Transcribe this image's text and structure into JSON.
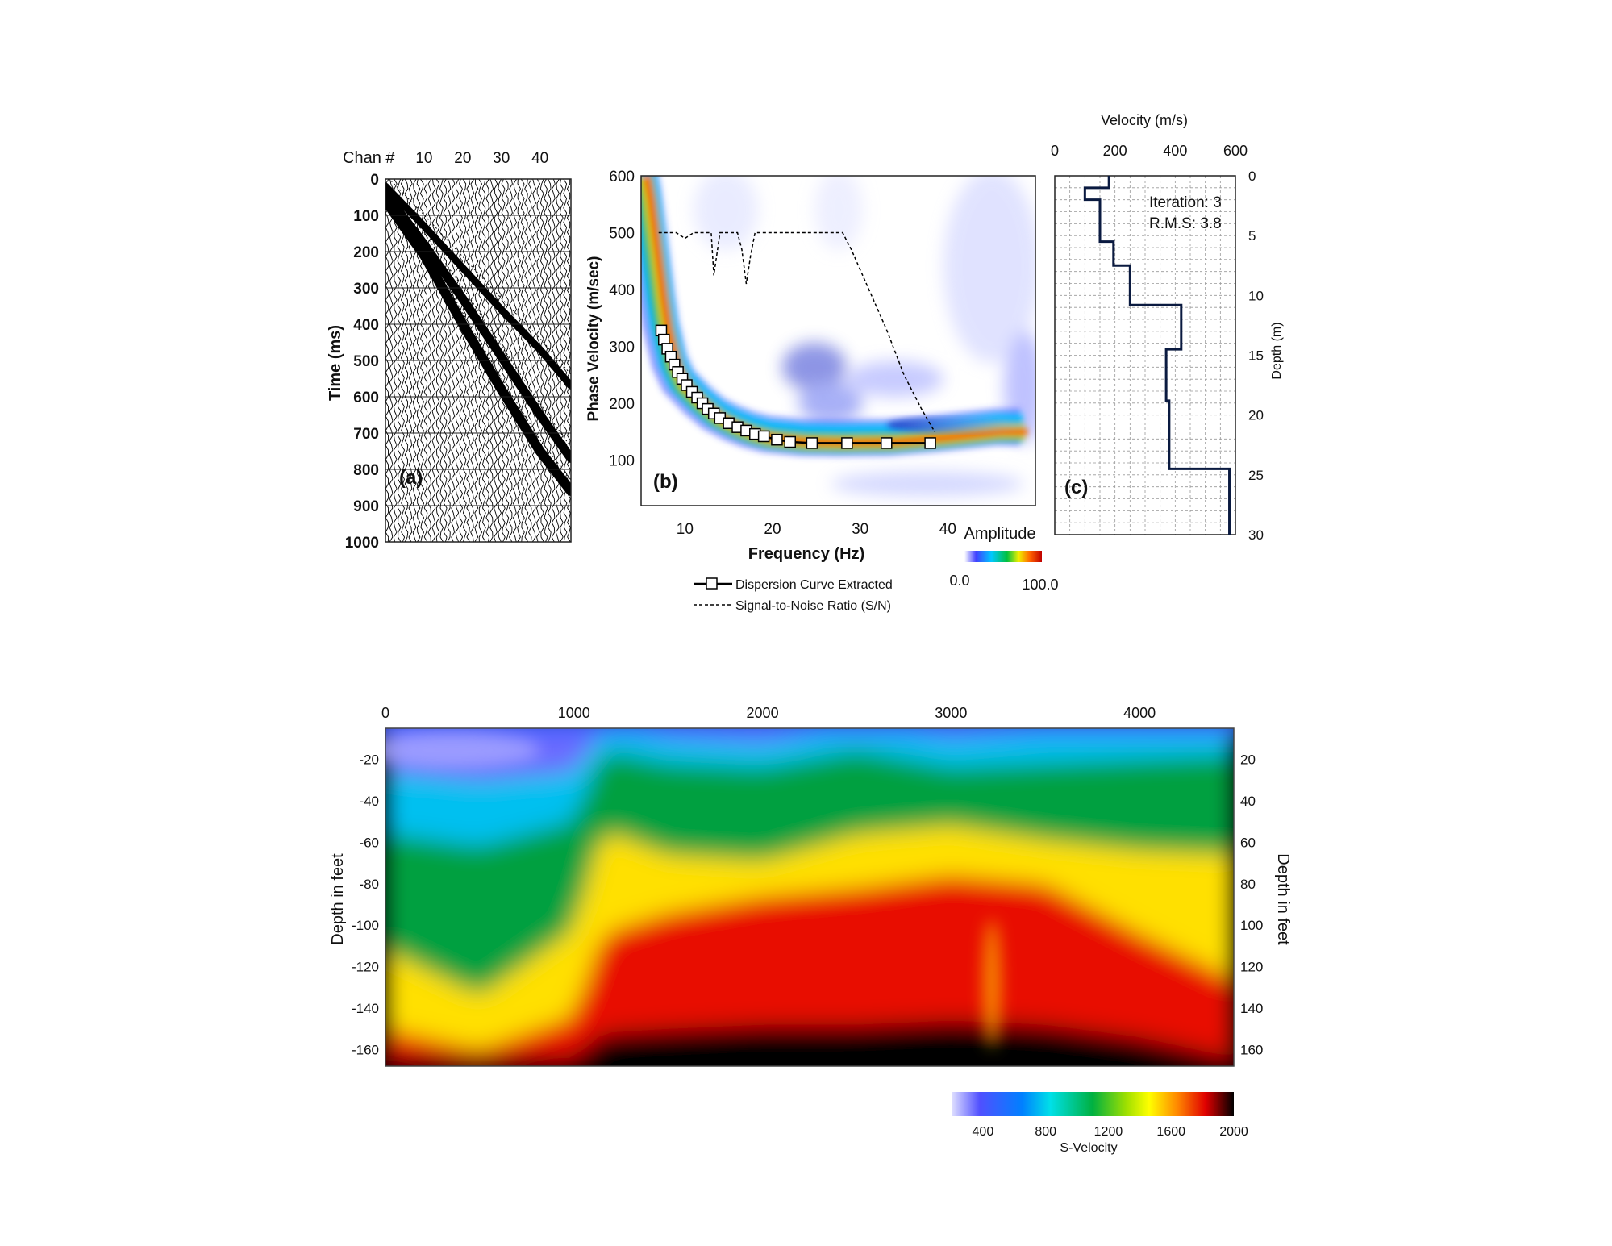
{
  "panel_a": {
    "chan_label": "Chan #",
    "chan_ticks": [
      "10",
      "20",
      "30",
      "40"
    ],
    "time_ticks": [
      "0",
      "100",
      "200",
      "300",
      "400",
      "500",
      "600",
      "700",
      "800",
      "900",
      "1000"
    ],
    "ylabel": "Time (ms)",
    "tag": "(a)"
  },
  "panel_b": {
    "y_ticks": [
      "600",
      "500",
      "400",
      "300",
      "200",
      "100"
    ],
    "x_ticks": [
      "10",
      "20",
      "30",
      "40"
    ],
    "ylabel": "Phase Velocity (m/sec)",
    "xlabel": "Frequency (Hz)",
    "tag": "(b)",
    "colorbar_title": "Amplitude",
    "colorbar_min": "0.0",
    "colorbar_max": "100.0",
    "legend_dispersion": "Dispersion Curve Extracted",
    "legend_snr": "Signal-to-Noise Ratio (S/N)"
  },
  "panel_c": {
    "title": "Velocity (m/s)",
    "x_ticks": [
      "0",
      "200",
      "400",
      "600"
    ],
    "y_ticks": [
      "0",
      "5",
      "10",
      "15",
      "20",
      "25",
      "30"
    ],
    "ylabel": "Depth (m)",
    "tag": "(c)",
    "iteration": "Iteration: 3",
    "rms": "R.M.S: 3.8"
  },
  "section": {
    "x_ticks": [
      "0",
      "1000",
      "2000",
      "3000",
      "4000"
    ],
    "y_ticks": [
      "-20",
      "-40",
      "-60",
      "-80",
      "-100",
      "-120",
      "-140",
      "-160"
    ],
    "y_ticks_right": [
      "20",
      "40",
      "60",
      "80",
      "100",
      "120",
      "140",
      "160"
    ],
    "ylabel_left": "Depth in feet",
    "ylabel_right": "Depth in feet",
    "colorbar_ticks": [
      "400",
      "800",
      "1200",
      "1600",
      "2000"
    ],
    "colorbar_title": "S-Velocity"
  },
  "chart_data": [
    {
      "type": "scatter",
      "panel": "a",
      "xlabel": "Chan #",
      "ylabel": "Time (ms)",
      "xlim": [
        0,
        48
      ],
      "ylim": [
        1000,
        0
      ],
      "series": [
        {
          "x": [
            0,
            10,
            20,
            30,
            40,
            48
          ],
          "y": [
            20,
            130,
            245,
            360,
            470,
            570
          ]
        },
        {
          "x": [
            0,
            10,
            20,
            30,
            40,
            48
          ],
          "y": [
            40,
            180,
            330,
            490,
            650,
            770
          ]
        },
        {
          "x": [
            0,
            10,
            20,
            30,
            40,
            48
          ],
          "y": [
            60,
            210,
            400,
            580,
            750,
            860
          ]
        }
      ]
    },
    {
      "type": "line",
      "panel": "b",
      "xlabel": "Frequency (Hz)",
      "ylabel": "Phase Velocity (m/sec)",
      "xlim": [
        5,
        50
      ],
      "ylim": [
        20,
        600
      ],
      "series": [
        {
          "name": "Dispersion Curve Extracted",
          "x": [
            7.3,
            7.6,
            8.0,
            8.4,
            8.8,
            9.2,
            9.7,
            10.2,
            10.8,
            11.4,
            12.0,
            12.6,
            13.3,
            14.0,
            15.0,
            16.0,
            17.0,
            18.0,
            19.0,
            20.5,
            22.0,
            24.5,
            28.5,
            33.0,
            38.0
          ],
          "y": [
            328,
            312,
            296,
            282,
            268,
            255,
            243,
            232,
            220,
            210,
            200,
            190,
            182,
            174,
            165,
            158,
            152,
            146,
            142,
            136,
            132,
            130,
            130,
            130,
            130
          ]
        },
        {
          "name": "Signal-to-Noise Ratio (S/N)",
          "x": [
            7,
            9,
            10,
            11,
            12,
            13,
            13.3,
            14,
            15,
            16,
            16.5,
            17,
            17.5,
            18,
            19,
            22,
            25,
            28,
            29,
            31,
            33,
            35,
            37,
            38.5
          ],
          "y": [
            500,
            500,
            490,
            500,
            500,
            500,
            425,
            500,
            500,
            500,
            470,
            410,
            460,
            500,
            500,
            500,
            500,
            500,
            470,
            400,
            330,
            250,
            190,
            150
          ]
        }
      ]
    },
    {
      "type": "line",
      "panel": "c",
      "title": "Velocity (m/s)",
      "xlabel": "Velocity (m/s)",
      "ylabel": "Depth (m)",
      "xlim": [
        0,
        600
      ],
      "ylim": [
        30,
        0
      ],
      "series": [
        {
          "x": [
            180,
            180,
            100,
            100,
            150,
            150,
            195,
            195,
            250,
            250,
            420,
            420,
            370,
            370,
            380,
            380,
            580,
            580
          ],
          "y": [
            0,
            1,
            1,
            2,
            2,
            5.5,
            5.5,
            7.5,
            7.5,
            10.8,
            10.8,
            14.5,
            14.5,
            18.8,
            18.8,
            24.5,
            24.5,
            30
          ]
        }
      ]
    },
    {
      "type": "heatmap",
      "panel": "section",
      "xlabel": "",
      "ylabel": "Depth in feet",
      "xlim": [
        0,
        4500
      ],
      "ylim": [
        -168,
        -5
      ],
      "colorbar": {
        "title": "S-Velocity",
        "range": [
          200,
          2000
        ]
      },
      "contours": [
        {
          "level": 400,
          "x": [
            0,
            500,
            1000,
            1150,
            1500,
            2000,
            2500,
            3000,
            3500,
            4000,
            4500
          ],
          "y": [
            -32,
            -36,
            -32,
            -12,
            -16,
            -18,
            -12,
            -16,
            -14,
            -14,
            -12
          ]
        },
        {
          "level": 800,
          "x": [
            0,
            500,
            1000,
            1150,
            1500,
            2000,
            2500,
            3000,
            3500,
            4000,
            4500
          ],
          "y": [
            -62,
            -68,
            -56,
            -22,
            -28,
            -30,
            -22,
            -30,
            -28,
            -26,
            -24
          ]
        },
        {
          "level": 1200,
          "x": [
            0,
            500,
            1000,
            1150,
            1500,
            2000,
            2500,
            3000,
            3500,
            4000,
            4500
          ],
          "y": [
            -118,
            -140,
            -108,
            -60,
            -72,
            -75,
            -62,
            -58,
            -65,
            -70,
            -72
          ]
        },
        {
          "level": 1600,
          "x": [
            0,
            500,
            1000,
            1150,
            1500,
            2000,
            2500,
            3000,
            3500,
            4000,
            4500
          ],
          "y": [
            -156,
            -166,
            -150,
            -110,
            -100,
            -92,
            -88,
            -82,
            -86,
            -110,
            -132
          ]
        },
        {
          "level": 2000,
          "x": [
            0,
            500,
            1000,
            1150,
            1500,
            2000,
            2500,
            3000,
            3500,
            4000,
            4500
          ],
          "y": [
            -168,
            -168,
            -168,
            -156,
            -154,
            -152,
            -152,
            -150,
            -152,
            -158,
            -168
          ]
        }
      ]
    }
  ]
}
